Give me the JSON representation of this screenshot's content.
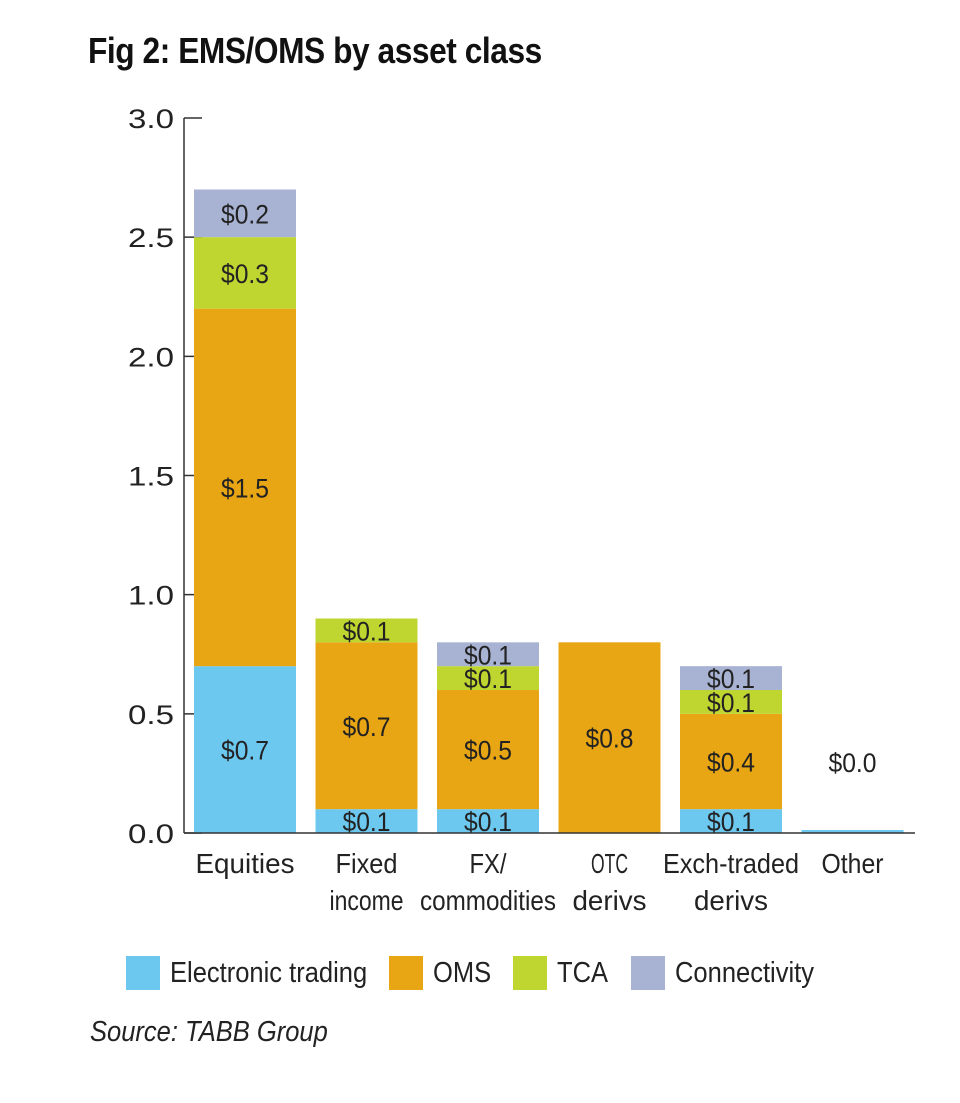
{
  "chart_data": {
    "type": "bar",
    "stacked": true,
    "title": "Fig 2: EMS/OMS by asset class",
    "categories": [
      [
        "Equities"
      ],
      [
        "Fixed",
        "income"
      ],
      [
        "FX/",
        "commodities"
      ],
      [
        "OTC",
        "derivs"
      ],
      [
        "Exch-traded",
        "derivs"
      ],
      [
        "Other"
      ]
    ],
    "series": [
      {
        "name": "Electronic trading",
        "color": "#6dc8f0",
        "values": [
          0.7,
          0.1,
          0.1,
          0.0,
          0.1,
          0.0
        ],
        "labels": [
          "$0.7",
          "$0.1",
          "$0.1",
          null,
          "$0.1",
          null
        ]
      },
      {
        "name": "OMS",
        "color": "#e8a514",
        "values": [
          1.5,
          0.7,
          0.5,
          0.8,
          0.4,
          0.0
        ],
        "labels": [
          "$1.5",
          "$0.7",
          "$0.5",
          "$0.8",
          "$0.4",
          null
        ]
      },
      {
        "name": "TCA",
        "color": "#bfd630",
        "values": [
          0.3,
          0.1,
          0.1,
          0.0,
          0.1,
          0.0
        ],
        "labels": [
          "$0.3",
          "$0.1",
          "$0.1",
          null,
          "$0.1",
          null
        ]
      },
      {
        "name": "Connectivity",
        "color": "#a8b2d3",
        "values": [
          0.2,
          0.0,
          0.1,
          0.0,
          0.1,
          0.0
        ],
        "labels": [
          "$0.2",
          null,
          "$0.1",
          null,
          "$0.1",
          null
        ]
      }
    ],
    "extra_labels": [
      {
        "category_index": 5,
        "text": "$0.0"
      }
    ],
    "y_ticks": [
      "0.0",
      "0.5",
      "1.0",
      "1.5",
      "2.0",
      "2.5",
      "3.0"
    ],
    "ylim": [
      0,
      3.0
    ],
    "legend_position": "bottom"
  },
  "source": "Source: TABB Group"
}
